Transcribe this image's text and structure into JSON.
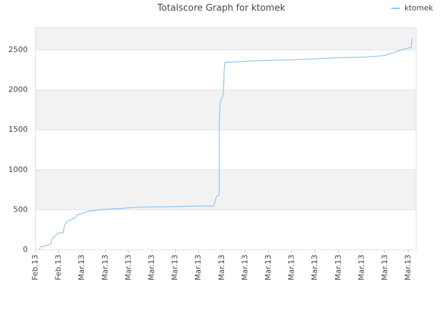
{
  "chart_data": {
    "type": "line",
    "title": "Totalscore Graph for ktomek",
    "x": [
      0.18,
      0.21,
      0.33,
      0.57,
      0.65,
      0.71,
      0.86,
      0.98,
      1.19,
      1.25,
      1.34,
      1.52,
      1.7,
      1.79,
      2.05,
      2.29,
      2.65,
      2.95,
      3.39,
      3.84,
      4.2,
      5.18,
      5.92,
      6.82,
      7.65,
      7.71,
      7.77,
      7.89,
      7.89,
      7.92,
      8.0,
      8.07,
      8.1,
      8.13,
      8.6,
      9.2,
      10.09,
      10.98,
      11.88,
      13.07,
      14.26,
      15.0,
      15.6,
      16.13,
      16.16
    ],
    "series": [
      {
        "name": "ktomek",
        "color": "#8ec3f0",
        "values": [
          0,
          35,
          43,
          60,
          70,
          130,
          175,
          210,
          215,
          305,
          350,
          375,
          400,
          435,
          460,
          485,
          495,
          505,
          512,
          520,
          530,
          538,
          538,
          547,
          547,
          608,
          668,
          686,
          1563,
          1840,
          1892,
          1953,
          2257,
          2344,
          2352,
          2361,
          2370,
          2378,
          2387,
          2405,
          2413,
          2430,
          2491,
          2535,
          2648
        ]
      }
    ],
    "xlim": [
      0,
      16.34
    ],
    "xticks": [
      {
        "value": 0,
        "label": "Feb.13"
      },
      {
        "value": 1,
        "label": "Feb.13"
      },
      {
        "value": 2,
        "label": "Mar.13"
      },
      {
        "value": 3,
        "label": "Mar.13"
      },
      {
        "value": 4,
        "label": "Mar.13"
      },
      {
        "value": 5,
        "label": "Mar.13"
      },
      {
        "value": 6,
        "label": "Mar.13"
      },
      {
        "value": 7,
        "label": "Mar.13"
      },
      {
        "value": 8,
        "label": "Mar.13"
      },
      {
        "value": 9,
        "label": "Mar.13"
      },
      {
        "value": 10,
        "label": "Mar.13"
      },
      {
        "value": 11,
        "label": "Mar.13"
      },
      {
        "value": 12,
        "label": "Mar.13"
      },
      {
        "value": 13,
        "label": "Mar.13"
      },
      {
        "value": 14,
        "label": "Mar.13"
      },
      {
        "value": 15,
        "label": "Mar.13"
      },
      {
        "value": 16,
        "label": "Mar.13"
      }
    ],
    "ylim": [
      0,
      2778
    ],
    "yticks": [
      0,
      500,
      1000,
      1500,
      2000,
      2500
    ],
    "grid": true,
    "legend": "top-right"
  }
}
